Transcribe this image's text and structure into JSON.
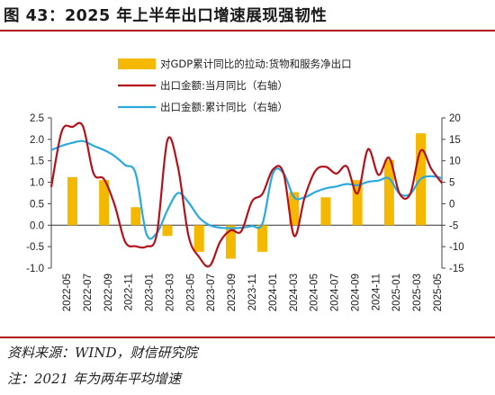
{
  "header": {
    "title": "图 43：2025 年上半年出口增速展现强韧性"
  },
  "footer": {
    "source": "资料来源：WIND，财信研究院",
    "note": "注：2021 年为两年平均增速"
  },
  "chart_data": {
    "type": "bar+line",
    "x_labels": [
      "2022-05",
      "2022-07",
      "2022-09",
      "2022-11",
      "2023-01",
      "2023-03",
      "2023-05",
      "2023-07",
      "2023-09",
      "2023-11",
      "2024-01",
      "2024-03",
      "2024-05",
      "2024-07",
      "2024-09",
      "2024-11",
      "2025-01",
      "2025-03",
      "2025-05"
    ],
    "legend": [
      {
        "name": "对GDP累计同比的拉动:货物和服务净出口",
        "color": "#f5b800",
        "kind": "bar"
      },
      {
        "name": "出口金额:当月同比（右轴）",
        "color": "#b3121a",
        "kind": "line"
      },
      {
        "name": "出口金额:累计同比（右轴）",
        "color": "#2aa9e0",
        "kind": "line"
      }
    ],
    "y_left": {
      "min": -1.0,
      "max": 2.5,
      "ticks": [
        "2.5",
        "2.0",
        "1.5",
        "1.0",
        "0.5",
        "0.0",
        "-0.5",
        "-1.0"
      ]
    },
    "y_right": {
      "min": -15,
      "max": 20,
      "ticks": [
        "20",
        "15",
        "10",
        "5",
        "0",
        "-5",
        "-10",
        "-15"
      ]
    },
    "bars": [
      {
        "x": "2022-06",
        "value": 1.12
      },
      {
        "x": "2022-09",
        "value": 1.05
      },
      {
        "x": "2022-12",
        "value": 0.42
      },
      {
        "x": "2023-03",
        "value": -0.25
      },
      {
        "x": "2023-06",
        "value": -0.62
      },
      {
        "x": "2023-09",
        "value": -0.78
      },
      {
        "x": "2023-12",
        "value": -0.62
      },
      {
        "x": "2024-03",
        "value": 0.77
      },
      {
        "x": "2024-06",
        "value": 0.65
      },
      {
        "x": "2024-09",
        "value": 1.05
      },
      {
        "x": "2024-12",
        "value": 1.52
      },
      {
        "x": "2025-03",
        "value": 2.14
      }
    ],
    "monthly_yoy": [
      {
        "x": "2022-04",
        "y": 3.9
      },
      {
        "x": "2022-05",
        "y": 16.9
      },
      {
        "x": "2022-06",
        "y": 17.9
      },
      {
        "x": "2022-07",
        "y": 18.0
      },
      {
        "x": "2022-08",
        "y": 7.1
      },
      {
        "x": "2022-09",
        "y": 5.7
      },
      {
        "x": "2022-10",
        "y": -0.3
      },
      {
        "x": "2022-11",
        "y": -8.9
      },
      {
        "x": "2022-12",
        "y": -9.9
      },
      {
        "x": "2023-01",
        "y": -10.0
      },
      {
        "x": "2023-02",
        "y": -7.0
      },
      {
        "x": "2023-03",
        "y": 14.8
      },
      {
        "x": "2023-04",
        "y": 8.5
      },
      {
        "x": "2023-05",
        "y": -7.5
      },
      {
        "x": "2023-06",
        "y": -12.4
      },
      {
        "x": "2023-07",
        "y": -14.5
      },
      {
        "x": "2023-08",
        "y": -8.8
      },
      {
        "x": "2023-09",
        "y": -6.2
      },
      {
        "x": "2023-10",
        "y": -6.4
      },
      {
        "x": "2023-11",
        "y": 0.5
      },
      {
        "x": "2023-12",
        "y": 2.3
      },
      {
        "x": "2024-01",
        "y": 8.0
      },
      {
        "x": "2024-02",
        "y": 7.1
      },
      {
        "x": "2024-03",
        "y": -7.5
      },
      {
        "x": "2024-04",
        "y": 1.5
      },
      {
        "x": "2024-05",
        "y": 7.6
      },
      {
        "x": "2024-06",
        "y": 8.6
      },
      {
        "x": "2024-07",
        "y": 7.0
      },
      {
        "x": "2024-08",
        "y": 8.7
      },
      {
        "x": "2024-09",
        "y": 2.4
      },
      {
        "x": "2024-10",
        "y": 12.7
      },
      {
        "x": "2024-11",
        "y": 6.7
      },
      {
        "x": "2024-12",
        "y": 10.7
      },
      {
        "x": "2025-01",
        "y": 2.3
      },
      {
        "x": "2025-02",
        "y": 2.3
      },
      {
        "x": "2025-03",
        "y": 12.4
      },
      {
        "x": "2025-04",
        "y": 8.1
      },
      {
        "x": "2025-05",
        "y": 4.8
      }
    ],
    "cumulative_yoy": [
      {
        "x": "2022-04",
        "y": 12.5
      },
      {
        "x": "2022-05",
        "y": 13.5
      },
      {
        "x": "2022-06",
        "y": 14.2
      },
      {
        "x": "2022-07",
        "y": 14.6
      },
      {
        "x": "2022-08",
        "y": 13.5
      },
      {
        "x": "2022-09",
        "y": 12.5
      },
      {
        "x": "2022-10",
        "y": 11.1
      },
      {
        "x": "2022-11",
        "y": 9.0
      },
      {
        "x": "2022-12",
        "y": 7.0
      },
      {
        "x": "2023-01",
        "y": -7.0
      },
      {
        "x": "2023-02",
        "y": -6.8
      },
      {
        "x": "2023-03",
        "y": -1.5
      },
      {
        "x": "2023-04",
        "y": 2.5
      },
      {
        "x": "2023-05",
        "y": 0.3
      },
      {
        "x": "2023-06",
        "y": -3.2
      },
      {
        "x": "2023-07",
        "y": -5.0
      },
      {
        "x": "2023-08",
        "y": -5.6
      },
      {
        "x": "2023-09",
        "y": -5.7
      },
      {
        "x": "2023-10",
        "y": -5.6
      },
      {
        "x": "2023-11",
        "y": -5.2
      },
      {
        "x": "2023-12",
        "y": -4.6
      },
      {
        "x": "2024-01",
        "y": 7.1
      },
      {
        "x": "2024-02",
        "y": 7.1
      },
      {
        "x": "2024-03",
        "y": 1.5
      },
      {
        "x": "2024-04",
        "y": 1.5
      },
      {
        "x": "2024-05",
        "y": 2.7
      },
      {
        "x": "2024-06",
        "y": 3.6
      },
      {
        "x": "2024-07",
        "y": 4.0
      },
      {
        "x": "2024-08",
        "y": 4.6
      },
      {
        "x": "2024-09",
        "y": 4.3
      },
      {
        "x": "2024-10",
        "y": 5.1
      },
      {
        "x": "2024-11",
        "y": 5.4
      },
      {
        "x": "2024-12",
        "y": 5.9
      },
      {
        "x": "2025-01",
        "y": 2.3
      },
      {
        "x": "2025-02",
        "y": 2.3
      },
      {
        "x": "2025-03",
        "y": 5.8
      },
      {
        "x": "2025-04",
        "y": 6.4
      },
      {
        "x": "2025-05",
        "y": 6.0
      }
    ]
  }
}
